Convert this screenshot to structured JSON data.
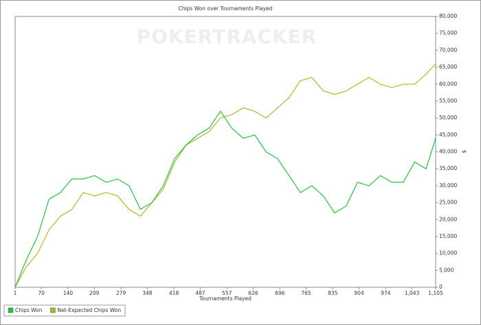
{
  "chart_data": {
    "type": "line",
    "title": "Chips Won over Tournaments Played",
    "watermark": "POKERTRACKER",
    "xlabel": "Tournaments Played",
    "ylabel": "$",
    "x": [
      1,
      30,
      60,
      90,
      120,
      150,
      180,
      210,
      240,
      270,
      300,
      330,
      360,
      390,
      420,
      450,
      480,
      510,
      540,
      570,
      600,
      630,
      660,
      690,
      720,
      750,
      780,
      810,
      840,
      870,
      900,
      930,
      960,
      990,
      1020,
      1050,
      1080,
      1105
    ],
    "series": [
      {
        "name": "Chips Won",
        "color": "#22c43a",
        "values": [
          0,
          8000,
          15000,
          26000,
          28000,
          32000,
          32000,
          33000,
          31000,
          32000,
          30000,
          23000,
          25000,
          30000,
          38000,
          42000,
          45000,
          47000,
          52000,
          47000,
          44000,
          45000,
          40000,
          38000,
          33000,
          28000,
          30000,
          27000,
          22000,
          24000,
          31000,
          30000,
          33000,
          31000,
          31000,
          37000,
          35000,
          44000
        ]
      },
      {
        "name": "Net-Expected Chips Won",
        "color": "#b5b52a",
        "values": [
          0,
          6000,
          10000,
          17000,
          21000,
          23000,
          28000,
          27000,
          28000,
          27000,
          23000,
          21000,
          25000,
          29000,
          37000,
          42000,
          44000,
          46000,
          50000,
          51000,
          53000,
          52000,
          50000,
          53000,
          56000,
          61000,
          62000,
          58000,
          57000,
          58000,
          60000,
          62000,
          60000,
          59000,
          60000,
          60000,
          63000,
          66000
        ]
      }
    ],
    "xlim": [
      1,
      1105
    ],
    "xticks": [
      1,
      70,
      140,
      209,
      279,
      348,
      418,
      487,
      557,
      626,
      696,
      765,
      835,
      904,
      974,
      {
        "value": 1043,
        "label": "1,043"
      },
      {
        "value": 1105,
        "label": "1,105"
      }
    ],
    "ylim": [
      0,
      80000
    ],
    "yticks": [
      0,
      {
        "value": 5000,
        "label": "5,000"
      },
      {
        "value": 10000,
        "label": "10,000"
      },
      {
        "value": 15000,
        "label": "15,000"
      },
      {
        "value": 20000,
        "label": "20,000"
      },
      {
        "value": 25000,
        "label": "25,000"
      },
      {
        "value": 30000,
        "label": "30,000"
      },
      {
        "value": 35000,
        "label": "35,000"
      },
      {
        "value": 40000,
        "label": "40,000"
      },
      {
        "value": 45000,
        "label": "45,000"
      },
      {
        "value": 50000,
        "label": "50,000"
      },
      {
        "value": 55000,
        "label": "55,000"
      },
      {
        "value": 60000,
        "label": "60,000"
      },
      {
        "value": 65000,
        "label": "65,000"
      },
      {
        "value": 70000,
        "label": "70,000"
      },
      {
        "value": 75000,
        "label": "75,000"
      },
      {
        "value": 80000,
        "label": "80,000"
      }
    ],
    "yaxis_side": "right",
    "grid": false,
    "legend": "bottom-left"
  }
}
